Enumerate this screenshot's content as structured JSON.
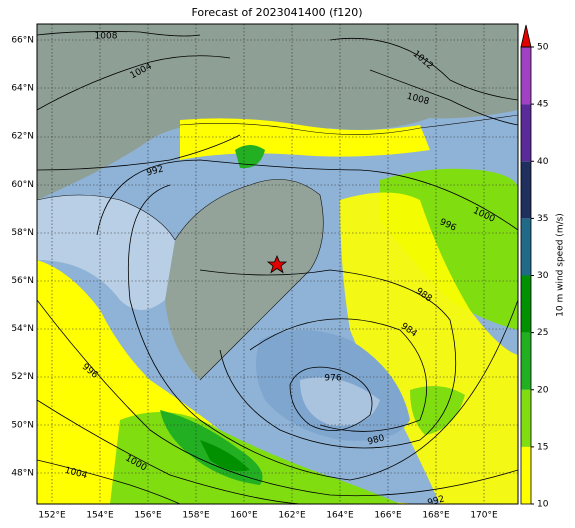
{
  "title": "Forecast of 2023041400 (f120)",
  "lat_labels": [
    "66°N",
    "64°N",
    "62°N",
    "60°N",
    "58°N",
    "56°N",
    "54°N",
    "52°N",
    "50°N",
    "48°N"
  ],
  "lon_labels": [
    "152°E",
    "154°E",
    "156°E",
    "158°E",
    "160°E",
    "162°E",
    "164°E",
    "166°E",
    "168°E",
    "170°E"
  ],
  "isobar_labels": [
    "1008",
    "1004",
    "1012",
    "1008",
    "992",
    "1000",
    "996",
    "988",
    "984",
    "976",
    "980",
    "996",
    "1000",
    "1004",
    "992"
  ],
  "colorbar": {
    "label": "10 m wind speed (m/s)",
    "range": [
      10,
      50
    ],
    "ticks": [
      10,
      15,
      20,
      25,
      30,
      35,
      40,
      45,
      50
    ],
    "colors": [
      "#ffff00",
      "#80dd10",
      "#22b022",
      "#009000",
      "#206a88",
      "#1f2f5e",
      "#5b2a99",
      "#a142c2"
    ],
    "extend_color": "#e00000"
  }
}
